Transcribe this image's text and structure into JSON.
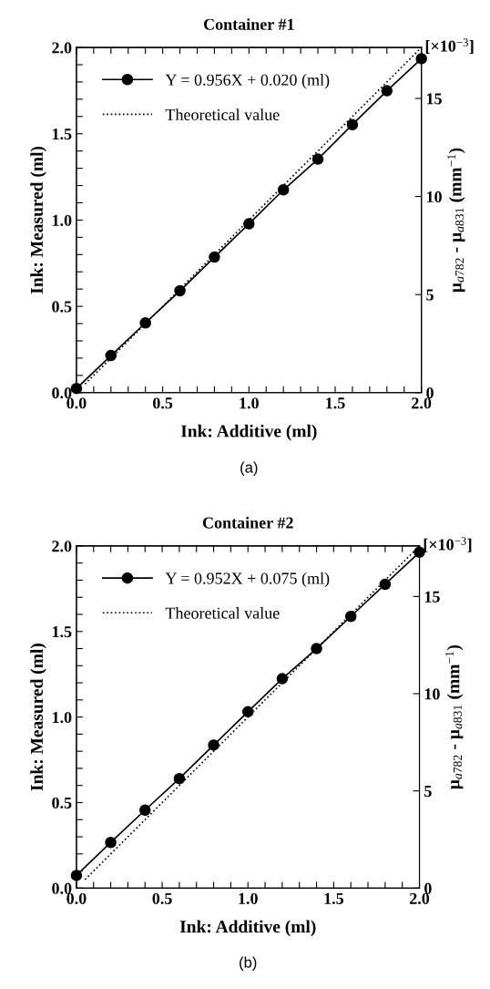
{
  "chart_data": [
    {
      "type": "line",
      "title": "Container #1",
      "xlabel": "Ink: Additive (ml)",
      "ylabel": "Ink: Measured (ml)",
      "y2label": "μ$_{a782}$ - μ$_{a831}$ (mm$^{−1}$)",
      "x": [
        0,
        0.2,
        0.4,
        0.6,
        0.8,
        1.0,
        1.2,
        1.4,
        1.6,
        1.8,
        2.0
      ],
      "series": [
        {
          "name": "Y = 0.956X + 0.020 (ml)",
          "color": "#000000",
          "marker": "circle",
          "line_style": "solid",
          "values": [
            0.024,
            0.215,
            0.404,
            0.59,
            0.785,
            0.978,
            1.175,
            1.353,
            1.553,
            1.749,
            1.935
          ]
        },
        {
          "name": "Theoretical value",
          "color": "#000000",
          "marker": "none",
          "line_style": "dotted",
          "x": [
            0.05,
            1.0,
            2.0
          ],
          "values": [
            0.05,
            1.0,
            2.0
          ]
        }
      ],
      "xlim": [
        0,
        2.0
      ],
      "ylim": [
        0,
        2.0
      ],
      "y2lim": [
        0,
        17.6
      ],
      "xticks": [
        {
          "value": 0,
          "label": "0.0"
        },
        {
          "value": 0.1,
          "label": null
        },
        {
          "value": 0.2,
          "label": null
        },
        {
          "value": 0.3,
          "label": null
        },
        {
          "value": 0.4,
          "label": null
        },
        {
          "value": 0.5,
          "label": "0.5"
        },
        {
          "value": 0.6,
          "label": null
        },
        {
          "value": 0.7,
          "label": null
        },
        {
          "value": 0.8,
          "label": null
        },
        {
          "value": 0.9,
          "label": null
        },
        {
          "value": 1.0,
          "label": "1.0"
        },
        {
          "value": 1.1,
          "label": null
        },
        {
          "value": 1.2,
          "label": null
        },
        {
          "value": 1.3,
          "label": null
        },
        {
          "value": 1.4,
          "label": null
        },
        {
          "value": 1.5,
          "label": "1.5"
        },
        {
          "value": 1.6,
          "label": null
        },
        {
          "value": 1.7,
          "label": null
        },
        {
          "value": 1.8,
          "label": null
        },
        {
          "value": 1.9,
          "label": null
        },
        {
          "value": 2.0,
          "label": "2.0"
        }
      ],
      "yticks": [
        {
          "value": 0,
          "label": "0.0"
        },
        {
          "value": 0.1,
          "label": null
        },
        {
          "value": 0.2,
          "label": null
        },
        {
          "value": 0.3,
          "label": null
        },
        {
          "value": 0.4,
          "label": null
        },
        {
          "value": 0.5,
          "label": "0.5"
        },
        {
          "value": 0.6,
          "label": null
        },
        {
          "value": 0.7,
          "label": null
        },
        {
          "value": 0.8,
          "label": null
        },
        {
          "value": 0.9,
          "label": null
        },
        {
          "value": 1.0,
          "label": "1.0"
        },
        {
          "value": 1.1,
          "label": null
        },
        {
          "value": 1.2,
          "label": null
        },
        {
          "value": 1.3,
          "label": null
        },
        {
          "value": 1.4,
          "label": null
        },
        {
          "value": 1.5,
          "label": "1.5"
        },
        {
          "value": 1.6,
          "label": null
        },
        {
          "value": 1.7,
          "label": null
        },
        {
          "value": 1.8,
          "label": null
        },
        {
          "value": 1.9,
          "label": null
        },
        {
          "value": 2.0,
          "label": "2.0"
        }
      ],
      "y2ticks": [
        0,
        5,
        10,
        15
      ],
      "legend": "top left",
      "grid": false,
      "annotations": [
        "[×10$^{−3}$]",
        "(a)"
      ]
    },
    {
      "type": "line",
      "title": "Container #2",
      "xlabel": "Ink: Additive (ml)",
      "ylabel": "Ink: Measured (ml)",
      "y2label": "μ$_{a782}$ - μ$_{a831}$ (mm$^{−1}$)",
      "x": [
        0,
        0.2,
        0.4,
        0.6,
        0.8,
        1.0,
        1.2,
        1.4,
        1.6,
        1.8,
        2.0
      ],
      "series": [
        {
          "name": "Y = 0.952X + 0.075 (ml)",
          "color": "#000000",
          "marker": "circle",
          "line_style": "solid",
          "values": [
            0.074,
            0.267,
            0.456,
            0.64,
            0.836,
            1.031,
            1.224,
            1.4,
            1.588,
            1.776,
            1.963
          ]
        },
        {
          "name": "Theoretical value",
          "color": "#000000",
          "marker": "none",
          "line_style": "dotted",
          "x": [
            0.05,
            1.0,
            2.0
          ],
          "values": [
            0.05,
            1.0,
            2.0
          ]
        }
      ],
      "xlim": [
        0,
        2.0
      ],
      "ylim": [
        0,
        2.0
      ],
      "y2lim": [
        0,
        17.6
      ],
      "xticks": [
        {
          "value": 0,
          "label": "0.0"
        },
        {
          "value": 0.1,
          "label": null
        },
        {
          "value": 0.2,
          "label": null
        },
        {
          "value": 0.3,
          "label": null
        },
        {
          "value": 0.4,
          "label": null
        },
        {
          "value": 0.5,
          "label": "0.5"
        },
        {
          "value": 0.6,
          "label": null
        },
        {
          "value": 0.7,
          "label": null
        },
        {
          "value": 0.8,
          "label": null
        },
        {
          "value": 0.9,
          "label": null
        },
        {
          "value": 1.0,
          "label": "1.0"
        },
        {
          "value": 1.1,
          "label": null
        },
        {
          "value": 1.2,
          "label": null
        },
        {
          "value": 1.3,
          "label": null
        },
        {
          "value": 1.4,
          "label": null
        },
        {
          "value": 1.5,
          "label": "1.5"
        },
        {
          "value": 1.6,
          "label": null
        },
        {
          "value": 1.7,
          "label": null
        },
        {
          "value": 1.8,
          "label": null
        },
        {
          "value": 1.9,
          "label": null
        },
        {
          "value": 2.0,
          "label": "2.0"
        }
      ],
      "yticks": [
        {
          "value": 0,
          "label": "0.0"
        },
        {
          "value": 0.1,
          "label": null
        },
        {
          "value": 0.2,
          "label": null
        },
        {
          "value": 0.3,
          "label": null
        },
        {
          "value": 0.4,
          "label": null
        },
        {
          "value": 0.5,
          "label": "0.5"
        },
        {
          "value": 0.6,
          "label": null
        },
        {
          "value": 0.7,
          "label": null
        },
        {
          "value": 0.8,
          "label": null
        },
        {
          "value": 0.9,
          "label": null
        },
        {
          "value": 1.0,
          "label": "1.0"
        },
        {
          "value": 1.1,
          "label": null
        },
        {
          "value": 1.2,
          "label": null
        },
        {
          "value": 1.3,
          "label": null
        },
        {
          "value": 1.4,
          "label": null
        },
        {
          "value": 1.5,
          "label": "1.5"
        },
        {
          "value": 1.6,
          "label": null
        },
        {
          "value": 1.7,
          "label": null
        },
        {
          "value": 1.8,
          "label": null
        },
        {
          "value": 1.9,
          "label": null
        },
        {
          "value": 2.0,
          "label": "2.0"
        }
      ],
      "y2ticks": [
        0,
        5,
        10,
        15
      ],
      "legend": "top left",
      "grid": false,
      "annotations": [
        "[×10$^{−3}$]",
        "(b)"
      ]
    }
  ]
}
